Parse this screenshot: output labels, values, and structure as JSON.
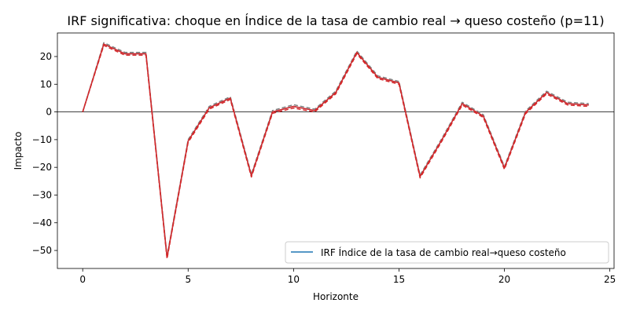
{
  "chart_data": {
    "type": "line",
    "title": "IRF significativa: choque en Índice de la tasa de cambio real → queso costeño (p=11)",
    "xlabel": "Horizonte",
    "ylabel": "Impacto",
    "xlim": [
      -1.2,
      25.2
    ],
    "ylim": [
      -56.5,
      28.5
    ],
    "x_ticks": [
      0,
      5,
      10,
      15,
      20,
      25
    ],
    "y_ticks": [
      -50,
      -40,
      -30,
      -20,
      -10,
      0,
      10,
      20
    ],
    "y_tick_labels": [
      "−50",
      "−40",
      "−30",
      "−20",
      "−10",
      "0",
      "10",
      "20"
    ],
    "legend": {
      "position": "lower right",
      "entries": [
        "IRF Índice de la tasa de cambio real→queso costeño"
      ]
    },
    "zero_line": true,
    "x": [
      0,
      1,
      2,
      3,
      4,
      5,
      6,
      7,
      8,
      9,
      10,
      11,
      12,
      13,
      14,
      15,
      16,
      17,
      18,
      19,
      20,
      21,
      22,
      23,
      24
    ],
    "series": [
      {
        "name": "IRF Índice de la tasa de cambio real→queso costeño",
        "style": "solid",
        "color": "#1f77b4",
        "values": [
          0,
          24.5,
          21,
          21,
          -52.5,
          -10.5,
          1.5,
          5,
          -23,
          0,
          2,
          0.5,
          7,
          21.5,
          12.5,
          10.5,
          -23.3,
          -10.5,
          3,
          -1.5,
          -20.2,
          -0.2,
          7,
          3,
          2.5
        ]
      },
      {
        "style": "dashed",
        "color": "#7f7f7f",
        "values": [
          0,
          25.0,
          21.5,
          21.5,
          -52.0,
          -10.0,
          2.0,
          5.5,
          -22.5,
          0.5,
          2.6,
          1.0,
          7.5,
          22.0,
          13.0,
          11.0,
          -22.8,
          -10.0,
          3.5,
          -1.0,
          -19.7,
          0.3,
          7.5,
          3.5,
          3.0
        ]
      },
      {
        "style": "dashed",
        "color": "#d62728",
        "values": [
          0,
          24.0,
          20.5,
          20.5,
          -53.0,
          -11.0,
          1.0,
          4.5,
          -23.5,
          -0.5,
          1.4,
          0.0,
          6.5,
          21.0,
          12.0,
          10.0,
          -23.8,
          -11.0,
          2.5,
          -2.0,
          -20.7,
          -0.7,
          6.5,
          2.5,
          2.0
        ]
      },
      {
        "style": "solid",
        "color": "#d62728",
        "values": [
          0,
          24.5,
          21,
          21,
          -52.5,
          -10.5,
          1.5,
          5,
          -23,
          0,
          2,
          0.5,
          7,
          21.5,
          12.5,
          10.5,
          -23.3,
          -10.5,
          3,
          -1.5,
          -20.2,
          -0.2,
          7,
          3,
          2.5
        ]
      }
    ]
  }
}
